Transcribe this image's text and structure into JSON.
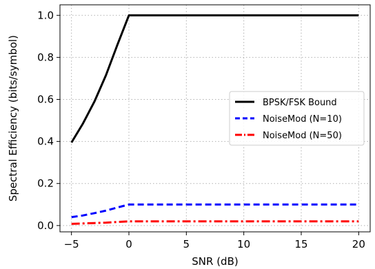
{
  "chart_data": {
    "type": "line",
    "title": "",
    "xlabel": "SNR (dB)",
    "ylabel": "Spectral Efficiency (bits/symbol)",
    "xlim": [
      -6,
      21
    ],
    "ylim": [
      -0.03,
      1.05
    ],
    "xticks": [
      -5,
      0,
      5,
      10,
      15,
      20
    ],
    "yticks": [
      0.0,
      0.2,
      0.4,
      0.6,
      0.8,
      1.0
    ],
    "xtick_labels": [
      "−5",
      "0",
      "5",
      "10",
      "15",
      "20"
    ],
    "ytick_labels": [
      "0.0",
      "0.2",
      "0.4",
      "0.6",
      "0.8",
      "1.0"
    ],
    "grid": true,
    "legend_position": "center-right",
    "series": [
      {
        "name": "BPSK/FSK Bound",
        "color": "#000000",
        "style": "solid",
        "x": [
          -5,
          -4,
          -3,
          -2,
          -1,
          0,
          0.3,
          1,
          5,
          10,
          15,
          20
        ],
        "y": [
          0.395,
          0.485,
          0.59,
          0.715,
          0.86,
          1.0,
          1.0,
          1.0,
          1.0,
          1.0,
          1.0,
          1.0
        ]
      },
      {
        "name": "NoiseMod (N=10)",
        "color": "#0000ff",
        "style": "dashed",
        "x": [
          -5,
          -4,
          -3,
          -2,
          -1,
          0,
          0.3,
          5,
          10,
          15,
          20
        ],
        "y": [
          0.04,
          0.048,
          0.059,
          0.071,
          0.086,
          0.1,
          0.1,
          0.1,
          0.1,
          0.1,
          0.1
        ]
      },
      {
        "name": "NoiseMod (N=50)",
        "color": "#ff0000",
        "style": "dashdot",
        "x": [
          -5,
          -4,
          -3,
          -2,
          -1,
          0,
          0.3,
          5,
          10,
          15,
          20
        ],
        "y": [
          0.008,
          0.01,
          0.012,
          0.014,
          0.017,
          0.02,
          0.02,
          0.02,
          0.02,
          0.02,
          0.02
        ]
      }
    ]
  }
}
